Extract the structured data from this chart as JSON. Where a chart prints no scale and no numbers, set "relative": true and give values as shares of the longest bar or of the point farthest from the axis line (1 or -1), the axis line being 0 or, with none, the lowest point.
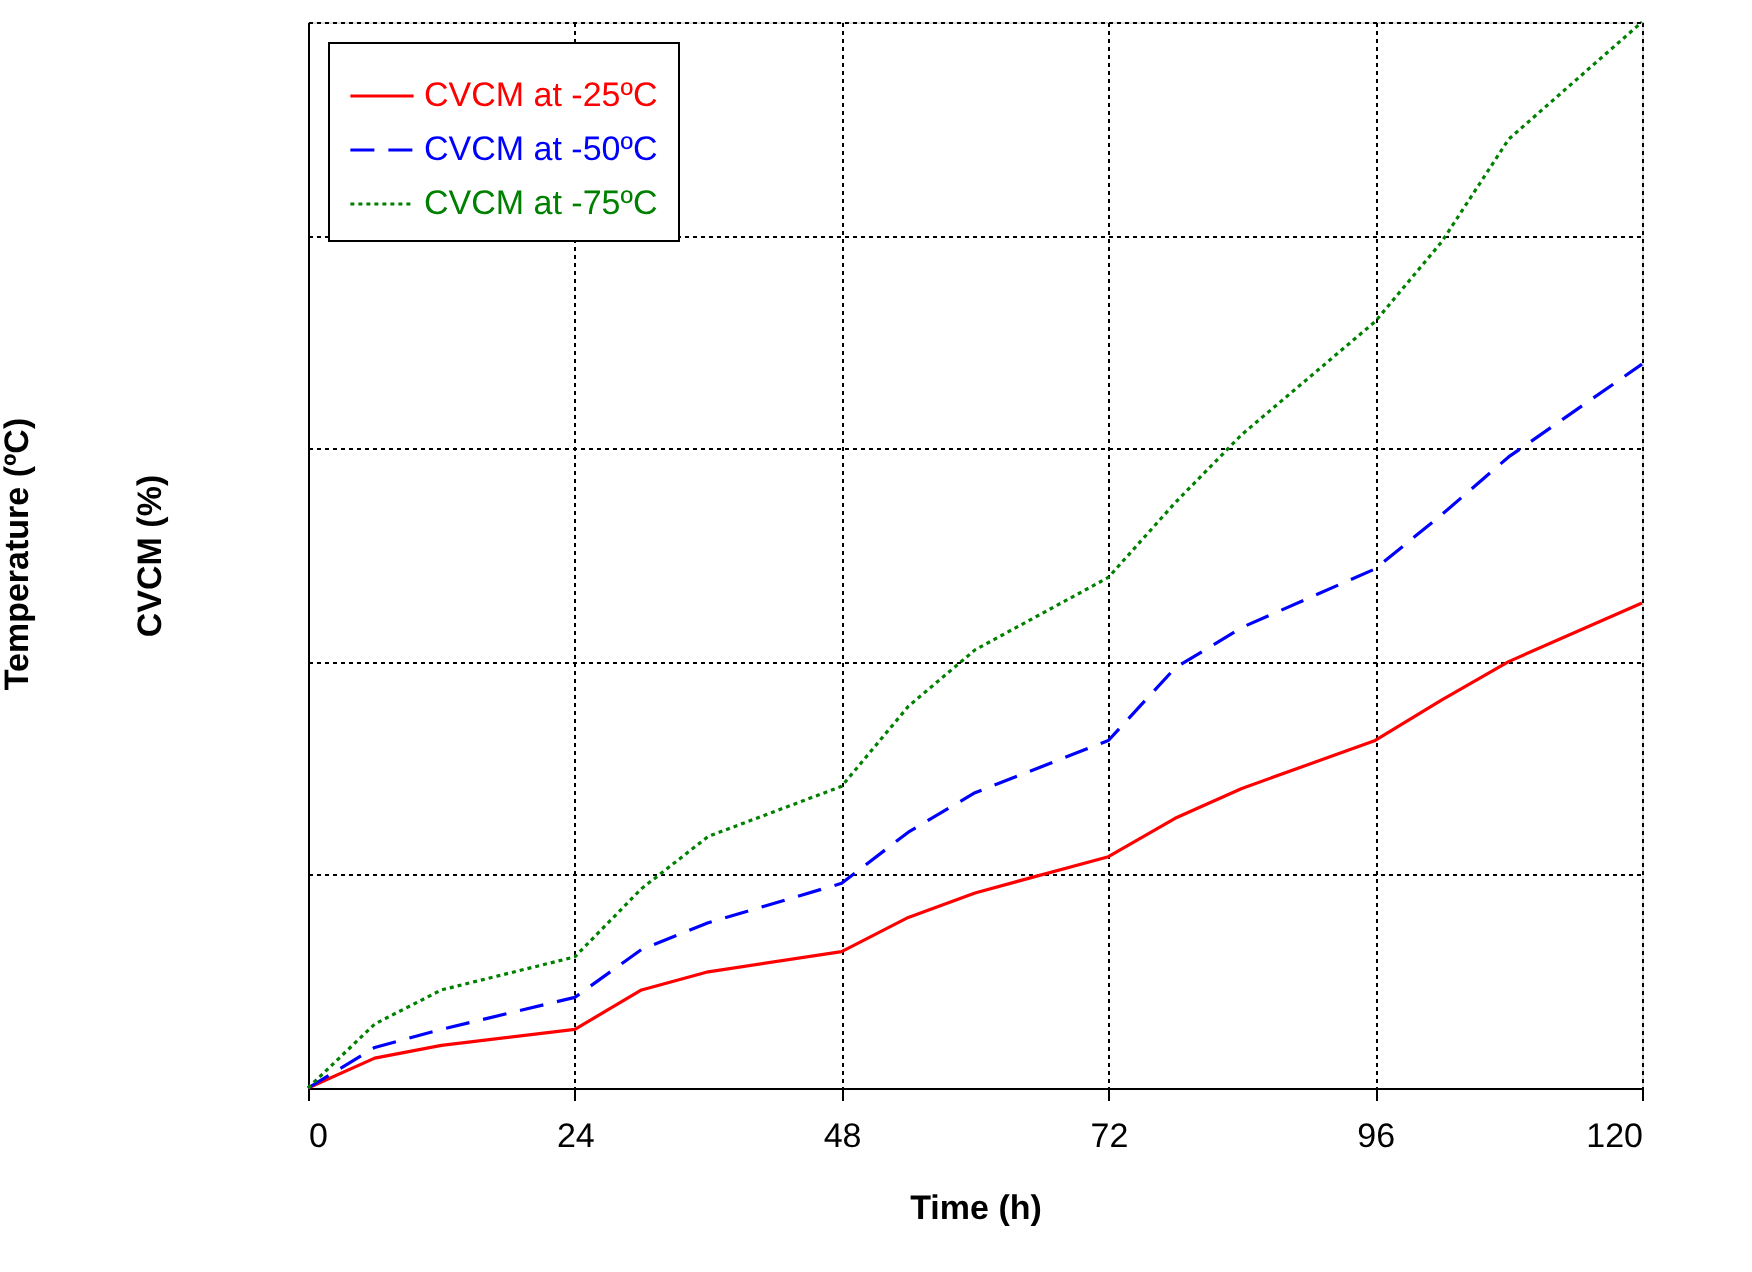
{
  "chart_data": {
    "type": "line",
    "relative": true,
    "xlabel": "Time (h)",
    "ylabel": "CVCM (%)",
    "annotations": [
      "Temperature (ºC)"
    ],
    "x": [
      0,
      6,
      12,
      24,
      30,
      36,
      48,
      54,
      60,
      72,
      78,
      84,
      96,
      102,
      108,
      120
    ],
    "xlim": [
      0,
      120
    ],
    "xticks": [
      0,
      24,
      48,
      72,
      96,
      120
    ],
    "grid": true,
    "legend": "top left",
    "marker": "none",
    "series": [
      {
        "name": "CVCM at -25ºC",
        "color": "#ff0000",
        "line_style": "solid",
        "values": [
          0,
          0.028,
          0.04,
          0.055,
          0.092,
          0.109,
          0.128,
          0.16,
          0.183,
          0.217,
          0.253,
          0.281,
          0.326,
          0.364,
          0.4,
          0.455
        ]
      },
      {
        "name": "CVCM at -50ºC",
        "color": "#0000ff",
        "line_style": "dashed",
        "values": [
          0,
          0.038,
          0.055,
          0.085,
          0.13,
          0.155,
          0.192,
          0.24,
          0.277,
          0.326,
          0.394,
          0.432,
          0.487,
          0.538,
          0.592,
          0.679
        ]
      },
      {
        "name": "CVCM at -75ºC",
        "color": "#008000",
        "line_style": "dotted",
        "values": [
          0,
          0.06,
          0.092,
          0.123,
          0.187,
          0.236,
          0.283,
          0.358,
          0.411,
          0.479,
          0.549,
          0.613,
          0.719,
          0.794,
          0.89,
          1
        ]
      }
    ]
  }
}
